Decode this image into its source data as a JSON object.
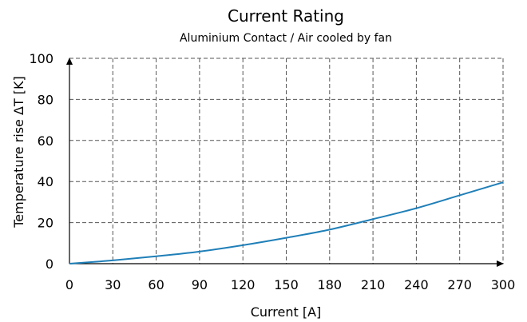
{
  "chart_data": {
    "type": "line",
    "title": "Current Rating",
    "subtitle": "Aluminium Contact / Air cooled by fan",
    "xlabel": "Current [A]",
    "ylabel": "Temperature rise ΔT [K]",
    "xlim": [
      0,
      300
    ],
    "ylim": [
      0,
      100
    ],
    "xticks": [
      "0",
      "30",
      "60",
      "90",
      "120",
      "150",
      "180",
      "210",
      "240",
      "270",
      "300"
    ],
    "yticks": [
      "0",
      "20",
      "40",
      "60",
      "80",
      "100"
    ],
    "grid": true,
    "series": [
      {
        "color": "#1f7fb8",
        "x": [
          0,
          30,
          60,
          90,
          120,
          150,
          180,
          210,
          240,
          270,
          300
        ],
        "y": [
          0,
          1.6,
          3.6,
          5.9,
          9.0,
          12.6,
          16.6,
          21.7,
          27.0,
          33.3,
          39.6
        ]
      }
    ]
  }
}
